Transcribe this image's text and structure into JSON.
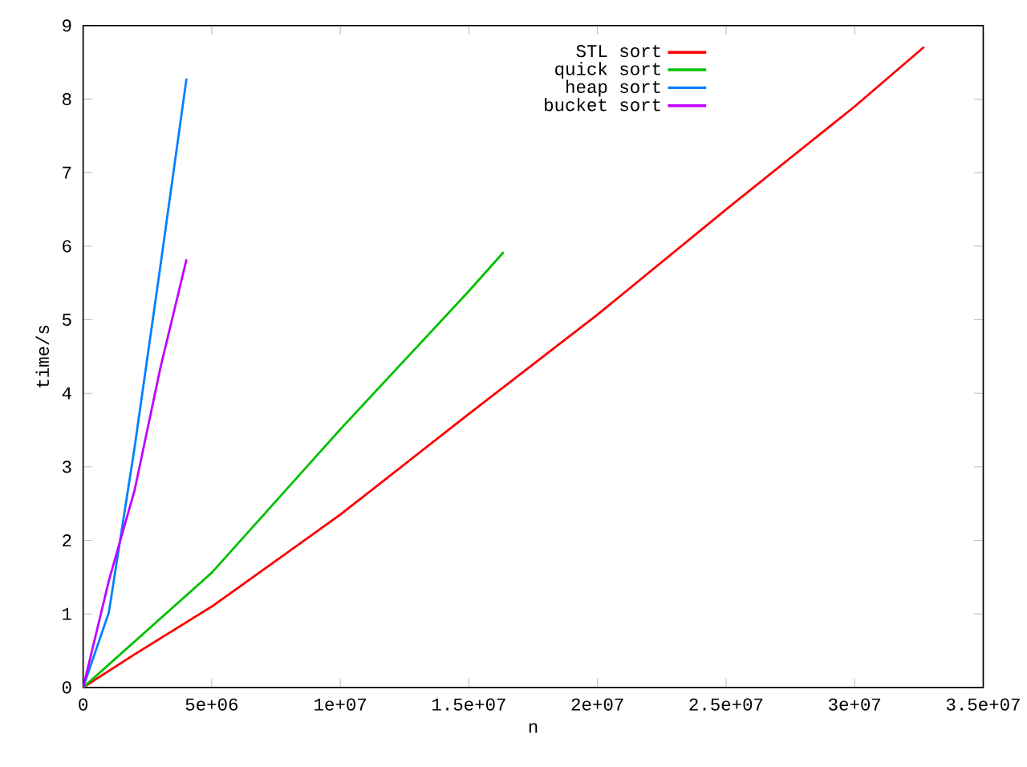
{
  "chart_data": {
    "type": "line",
    "xlabel": "n",
    "ylabel": "time/s",
    "xlim": [
      0,
      35000000
    ],
    "ylim": [
      0,
      9
    ],
    "xticks": [
      0,
      {
        "value": 5000000,
        "label": "5e+06"
      },
      {
        "value": 10000000,
        "label": "1e+07"
      },
      {
        "value": 15000000,
        "label": "1.5e+07"
      },
      {
        "value": 20000000,
        "label": "2e+07"
      },
      {
        "value": 25000000,
        "label": "2.5e+07"
      },
      {
        "value": 30000000,
        "label": "3e+07"
      },
      {
        "value": 35000000,
        "label": "3.5e+07"
      }
    ],
    "yticks": [
      0,
      1,
      2,
      3,
      4,
      5,
      6,
      7,
      8,
      9
    ],
    "legend": "top",
    "grid": false,
    "marker": "none",
    "line_style": "solid",
    "series": [
      {
        "name": "STL sort",
        "color": "#ff0000",
        "x": [
          0,
          2000000,
          5000000,
          8000000,
          10000000,
          15000000,
          20000000,
          25000000,
          30000000,
          32700000
        ],
        "values": [
          0,
          0.45,
          1.1,
          1.85,
          2.35,
          3.72,
          5.07,
          6.5,
          7.9,
          8.71
        ]
      },
      {
        "name": "quick sort",
        "color": "#00c000",
        "x": [
          0,
          5000000,
          10000000,
          15000000,
          16350000
        ],
        "values": [
          0,
          1.56,
          3.51,
          5.39,
          5.92
        ]
      },
      {
        "name": "heap sort",
        "color": "#0080ff",
        "x": [
          0,
          1000000,
          2000000,
          3000000,
          4020000
        ],
        "values": [
          0,
          1.02,
          3.26,
          5.72,
          8.28
        ]
      },
      {
        "name": "bucket sort",
        "color": "#c000ff",
        "x": [
          0,
          1000000,
          2000000,
          3000000,
          4020000
        ],
        "values": [
          0,
          1.45,
          2.68,
          4.34,
          5.82
        ]
      }
    ]
  }
}
